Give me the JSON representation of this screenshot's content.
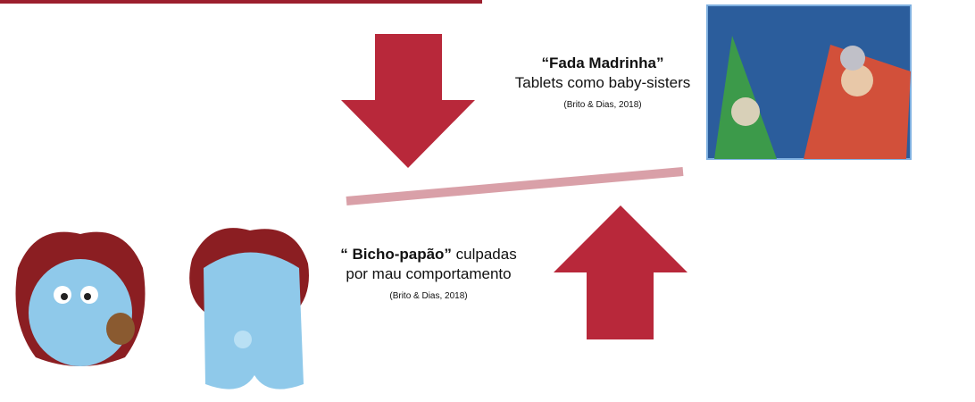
{
  "upper_caption": {
    "title": "“Fada Madrinha”",
    "text": "Tablets como baby-sisters",
    "citation": "(Brito & Dias, 2018)"
  },
  "lower_caption": {
    "title_bold": "“ Bicho-papão”",
    "title_rest": " culpadas",
    "text": "por mau comportamento",
    "citation": "(Brito & Dias, 2018)"
  }
}
